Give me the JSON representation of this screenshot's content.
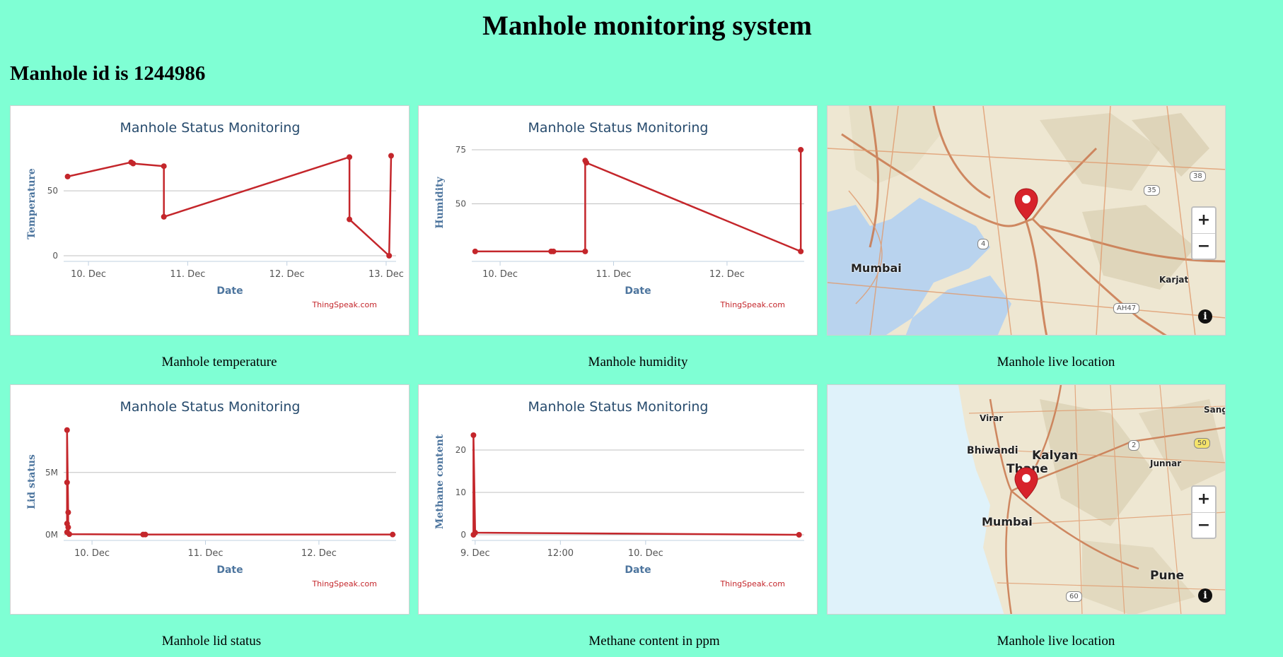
{
  "page": {
    "title": "Manhole monitoring system",
    "subtitle": "Manhole id is 1244986"
  },
  "colors": {
    "background": "#7fffd4",
    "series": "#c4262b",
    "chart_title": "#274b6d",
    "axis_title": "#4d759e"
  },
  "captions": {
    "temperature": "Manhole temperature",
    "humidity": "Manhole humidity",
    "location1": "Manhole live location",
    "lid": "Manhole lid status",
    "methane": "Methane content in ppm",
    "location2": "Manhole live location"
  },
  "credit": "ThingSpeak.com",
  "chart_data": [
    {
      "id": "temperature",
      "type": "line",
      "title": "Manhole Status Monitoring",
      "xlabel": "Date",
      "ylabel": "Temperature",
      "xlim": [
        9.75,
        13.1
      ],
      "ylim": [
        0,
        80
      ],
      "yticks": [
        {
          "v": 0,
          "label": "0"
        },
        {
          "v": 50,
          "label": "50"
        }
      ],
      "xticks": [
        {
          "v": 10,
          "label": "10. Dec"
        },
        {
          "v": 11,
          "label": "11. Dec"
        },
        {
          "v": 12,
          "label": "12. Dec"
        },
        {
          "v": 13,
          "label": "13. Dec"
        }
      ],
      "x": [
        9.79,
        10.43,
        10.45,
        10.76,
        10.76,
        12.63,
        12.63,
        13.03,
        13.05
      ],
      "y": [
        61,
        72,
        71,
        69,
        30,
        76,
        28,
        0,
        77
      ],
      "grid": true
    },
    {
      "id": "humidity",
      "type": "line",
      "title": "Manhole Status Monitoring",
      "xlabel": "Date",
      "ylabel": "Humidity",
      "xlim": [
        9.75,
        12.68
      ],
      "ylim": [
        26,
        75
      ],
      "yticks": [
        {
          "v": 50,
          "label": "50"
        },
        {
          "v": 75,
          "label": "75"
        }
      ],
      "xticks": [
        {
          "v": 10,
          "label": "10. Dec"
        },
        {
          "v": 11,
          "label": "11. Dec"
        },
        {
          "v": 12,
          "label": "12. Dec"
        }
      ],
      "x": [
        9.78,
        10.45,
        10.47,
        10.75,
        10.75,
        10.76,
        12.65,
        12.65
      ],
      "y": [
        28,
        28,
        28,
        28,
        70,
        69,
        28,
        75
      ],
      "grid": true
    },
    {
      "id": "lid",
      "type": "line",
      "title": "Manhole Status Monitoring",
      "xlabel": "Date",
      "ylabel": "Lid status",
      "xlim": [
        9.75,
        12.68
      ],
      "ylim": [
        0,
        8.5
      ],
      "yunit": "M",
      "yticks": [
        {
          "v": 0,
          "label": "0M"
        },
        {
          "v": 5,
          "label": "5M"
        }
      ],
      "xticks": [
        {
          "v": 10,
          "label": "10. Dec"
        },
        {
          "v": 11,
          "label": "11. Dec"
        },
        {
          "v": 12,
          "label": "12. Dec"
        }
      ],
      "x": [
        9.78,
        9.78,
        9.78,
        9.78,
        9.79,
        9.79,
        9.8,
        10.45,
        10.47,
        12.65
      ],
      "y": [
        0.2,
        0.9,
        4.2,
        8.4,
        1.8,
        0.6,
        0.05,
        0.02,
        0.02,
        0.02
      ],
      "grid": true
    },
    {
      "id": "methane",
      "type": "line",
      "title": "Manhole Status Monitoring",
      "xlabel": "Date",
      "ylabel": "Methane content",
      "xlim": [
        8.98,
        10.93
      ],
      "ylim": [
        0,
        25
      ],
      "yticks": [
        {
          "v": 0,
          "label": "0"
        },
        {
          "v": 10,
          "label": "10"
        },
        {
          "v": 20,
          "label": "20"
        }
      ],
      "xticks": [
        {
          "v": 9.0,
          "label": "9. Dec"
        },
        {
          "v": 9.5,
          "label": "12:00"
        },
        {
          "v": 10.0,
          "label": "10. Dec"
        }
      ],
      "x": [
        8.99,
        8.99,
        9.0,
        10.9
      ],
      "y": [
        0,
        23.5,
        0.5,
        0
      ],
      "grid": true
    }
  ],
  "maps": {
    "map1": {
      "labels": [
        "Mumbai",
        "Karjat"
      ],
      "shields": [
        "4",
        "35",
        "38",
        "AH47"
      ]
    },
    "map2": {
      "labels": [
        "Virar",
        "Bhiwandi",
        "Kalyan",
        "Thane",
        "Mumbai",
        "Junnar",
        "Pune",
        "Sang"
      ],
      "shields": [
        "2",
        "50",
        "60"
      ]
    },
    "zoom_in": "+",
    "zoom_out": "−",
    "info": "i"
  }
}
